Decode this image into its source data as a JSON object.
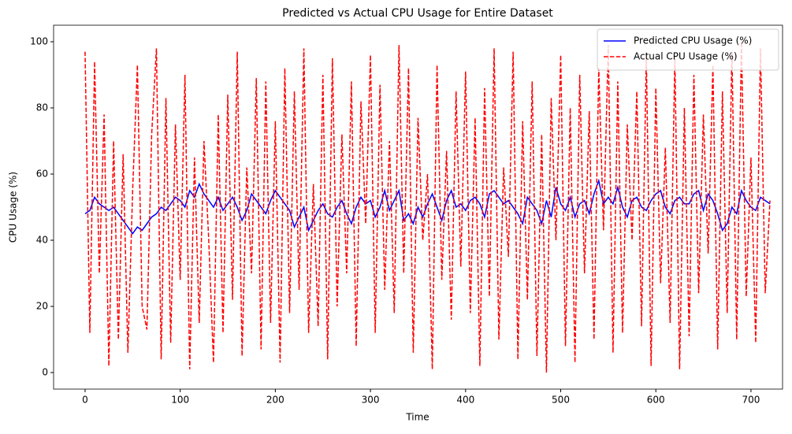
{
  "chart_data": {
    "type": "line",
    "title": "Predicted vs Actual CPU Usage for Entire Dataset",
    "x_label": "Time",
    "y_label": "CPU Usage (%)",
    "x": [
      0,
      5,
      10,
      15,
      20,
      25,
      30,
      35,
      40,
      45,
      50,
      55,
      60,
      65,
      70,
      75,
      80,
      85,
      90,
      95,
      100,
      105,
      110,
      115,
      120,
      125,
      130,
      135,
      140,
      145,
      150,
      155,
      160,
      165,
      170,
      175,
      180,
      185,
      190,
      195,
      200,
      205,
      210,
      215,
      220,
      225,
      230,
      235,
      240,
      245,
      250,
      255,
      260,
      265,
      270,
      275,
      280,
      285,
      290,
      295,
      300,
      305,
      310,
      315,
      320,
      325,
      330,
      335,
      340,
      345,
      350,
      355,
      360,
      365,
      370,
      375,
      380,
      385,
      390,
      395,
      400,
      405,
      410,
      415,
      420,
      425,
      430,
      435,
      440,
      445,
      450,
      455,
      460,
      465,
      470,
      475,
      480,
      485,
      490,
      495,
      500,
      505,
      510,
      515,
      520,
      525,
      530,
      535,
      540,
      545,
      550,
      555,
      560,
      565,
      570,
      575,
      580,
      585,
      590,
      595,
      600,
      605,
      610,
      615,
      620,
      625,
      630,
      635,
      640,
      645,
      650,
      655,
      660,
      665,
      670,
      675,
      680,
      685,
      690,
      695,
      700,
      705,
      710,
      715,
      720
    ],
    "series": [
      {
        "name": "Predicted CPU Usage (%)",
        "color": "#0000ff",
        "linestyle": "solid",
        "values": [
          48,
          49,
          53,
          51,
          50,
          49,
          50,
          48,
          46,
          44,
          42,
          44,
          43,
          45,
          47,
          48,
          50,
          49,
          51,
          53,
          52,
          50,
          55,
          53,
          57,
          54,
          52,
          50,
          53,
          49,
          51,
          53,
          50,
          46,
          49,
          54,
          52,
          50,
          48,
          52,
          55,
          53,
          51,
          49,
          44,
          47,
          50,
          43,
          46,
          49,
          51,
          48,
          47,
          50,
          52,
          48,
          45,
          50,
          53,
          51,
          52,
          47,
          50,
          55,
          49,
          52,
          55,
          46,
          48,
          45,
          50,
          47,
          51,
          54,
          50,
          46,
          52,
          55,
          50,
          51,
          49,
          52,
          53,
          51,
          47,
          54,
          55,
          53,
          51,
          52,
          50,
          48,
          45,
          53,
          51,
          49,
          45,
          52,
          47,
          56,
          51,
          49,
          53,
          47,
          51,
          52,
          48,
          54,
          58,
          51,
          53,
          51,
          56,
          50,
          47,
          52,
          53,
          50,
          49,
          52,
          54,
          55,
          50,
          48,
          52,
          53,
          51,
          51,
          54,
          55,
          49,
          54,
          52,
          48,
          43,
          45,
          50,
          48,
          55,
          52,
          50,
          49,
          53,
          52,
          51
        ]
      },
      {
        "name": "Actual CPU Usage (%)",
        "color": "#ff0000",
        "linestyle": "dashed",
        "values": [
          97,
          12,
          94,
          30,
          78,
          2,
          70,
          10,
          66,
          6,
          55,
          93,
          20,
          13,
          72,
          98,
          4,
          83,
          9,
          75,
          28,
          90,
          1,
          65,
          15,
          70,
          40,
          3,
          78,
          12,
          84,
          22,
          97,
          5,
          62,
          30,
          89,
          7,
          88,
          15,
          76,
          3,
          92,
          18,
          85,
          25,
          98,
          12,
          57,
          14,
          90,
          4,
          95,
          20,
          72,
          30,
          88,
          8,
          82,
          45,
          96,
          12,
          87,
          25,
          70,
          18,
          99,
          30,
          92,
          6,
          77,
          40,
          60,
          1,
          93,
          28,
          67,
          16,
          85,
          32,
          91,
          18,
          77,
          2,
          86,
          23,
          98,
          10,
          62,
          35,
          97,
          4,
          76,
          22,
          88,
          5,
          72,
          0,
          83,
          40,
          96,
          8,
          80,
          3,
          90,
          30,
          79,
          10,
          92,
          43,
          99,
          6,
          88,
          12,
          75,
          40,
          85,
          14,
          96,
          2,
          86,
          27,
          68,
          15,
          95,
          1,
          80,
          11,
          90,
          24,
          78,
          36,
          93,
          7,
          85,
          18,
          97,
          10,
          100,
          23,
          65,
          9,
          98,
          24,
          52
        ]
      }
    ],
    "xlim": [
      -33.1,
      733.2
    ],
    "xticks": [
      0,
      100,
      200,
      300,
      400,
      500,
      600,
      700
    ],
    "ylim": [
      -5,
      105
    ],
    "yticks": [
      0,
      20,
      40,
      60,
      80,
      100
    ],
    "legend": "upper right",
    "grid": false
  }
}
